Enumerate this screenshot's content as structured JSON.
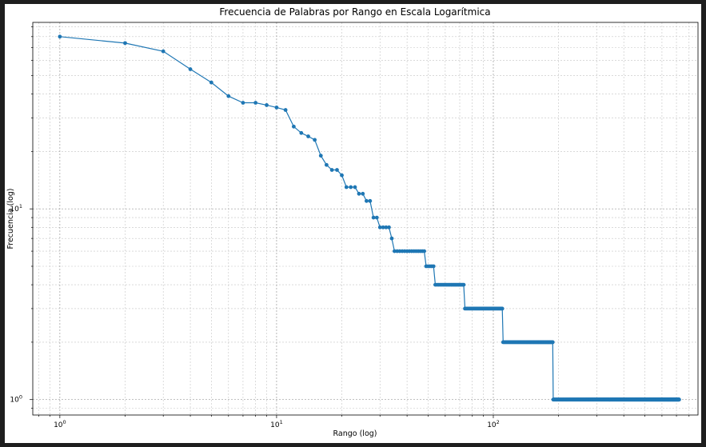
{
  "chart_data": {
    "type": "line",
    "title": "Frecuencia de Palabras por Rango en Escala Logarítmica",
    "xlabel": "Rango (log)",
    "ylabel": "Frecuencia (log)",
    "xscale": "log",
    "yscale": "log",
    "xlim": [
      0.75,
      880
    ],
    "ylim": [
      0.83,
      95
    ],
    "grid": true,
    "legend": "none",
    "color": "#1f77b4",
    "x_tick_labels": [
      {
        "base": "10",
        "exp": "0",
        "value": 1
      },
      {
        "base": "10",
        "exp": "1",
        "value": 10
      },
      {
        "base": "10",
        "exp": "2",
        "value": 100
      }
    ],
    "y_tick_labels": [
      {
        "base": "10",
        "exp": "0",
        "value": 1
      },
      {
        "base": "10",
        "exp": "1",
        "value": 10
      }
    ],
    "series": [
      {
        "points": [
          [
            1,
            80
          ],
          [
            2,
            74
          ],
          [
            3,
            67
          ],
          [
            4,
            54
          ],
          [
            5,
            46
          ],
          [
            6,
            39
          ],
          [
            7,
            36
          ],
          [
            8,
            36
          ],
          [
            9,
            35
          ],
          [
            10,
            34
          ],
          [
            11,
            33
          ],
          [
            12,
            27
          ],
          [
            13,
            25
          ],
          [
            14,
            24
          ],
          [
            15,
            23
          ],
          [
            16,
            19
          ],
          [
            17,
            17
          ],
          [
            18,
            16
          ],
          [
            19,
            16
          ],
          [
            20,
            15
          ],
          [
            21,
            13
          ],
          [
            22,
            13
          ],
          [
            23,
            13
          ],
          [
            24,
            12
          ],
          [
            25,
            12
          ],
          [
            26,
            11
          ],
          [
            27,
            11
          ],
          [
            28,
            9
          ],
          [
            29,
            9
          ],
          [
            30,
            8
          ],
          [
            31,
            8
          ],
          [
            32,
            8
          ],
          [
            33,
            8
          ],
          [
            34,
            7
          ]
        ],
        "steps": [
          {
            "from": 35,
            "to": 48,
            "value": 6
          },
          {
            "from": 49,
            "to": 53,
            "value": 5
          },
          {
            "from": 54,
            "to": 73,
            "value": 4
          },
          {
            "from": 74,
            "to": 110,
            "value": 3
          },
          {
            "from": 111,
            "to": 188,
            "value": 2
          },
          {
            "from": 189,
            "to": 720,
            "value": 1
          }
        ]
      }
    ]
  }
}
